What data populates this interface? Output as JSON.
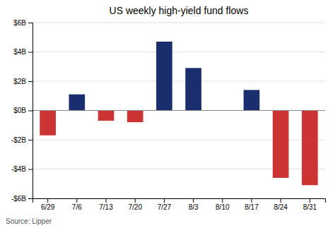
{
  "chart_data": {
    "type": "bar",
    "title": "US weekly high-yield fund flows",
    "categories": [
      "6/29",
      "7/6",
      "7/13",
      "7/20",
      "7/27",
      "8/3",
      "8/10",
      "8/17",
      "8/24",
      "8/31"
    ],
    "values": [
      -1.7,
      1.1,
      -0.7,
      -0.8,
      4.7,
      2.9,
      0.0,
      1.4,
      -4.6,
      -5.1
    ],
    "colors": [
      "#cc3333",
      "#1a2e6e",
      "#cc3333",
      "#cc3333",
      "#1a2e6e",
      "#1a2e6e",
      "#1a2e6e",
      "#1a2e6e",
      "#cc3333",
      "#cc3333"
    ],
    "ylim": [
      -6,
      6
    ],
    "yticks": [
      {
        "value": -6,
        "label": "-$6B"
      },
      {
        "value": -4,
        "label": "-$4B"
      },
      {
        "value": -2,
        "label": "-$2B"
      },
      {
        "value": 0,
        "label": "$0B"
      },
      {
        "value": 2,
        "label": "$2B"
      },
      {
        "value": 4,
        "label": "$4B"
      },
      {
        "value": 6,
        "label": "$6B"
      }
    ],
    "grid": true,
    "annotations": [
      "Source: Lipper"
    ]
  }
}
